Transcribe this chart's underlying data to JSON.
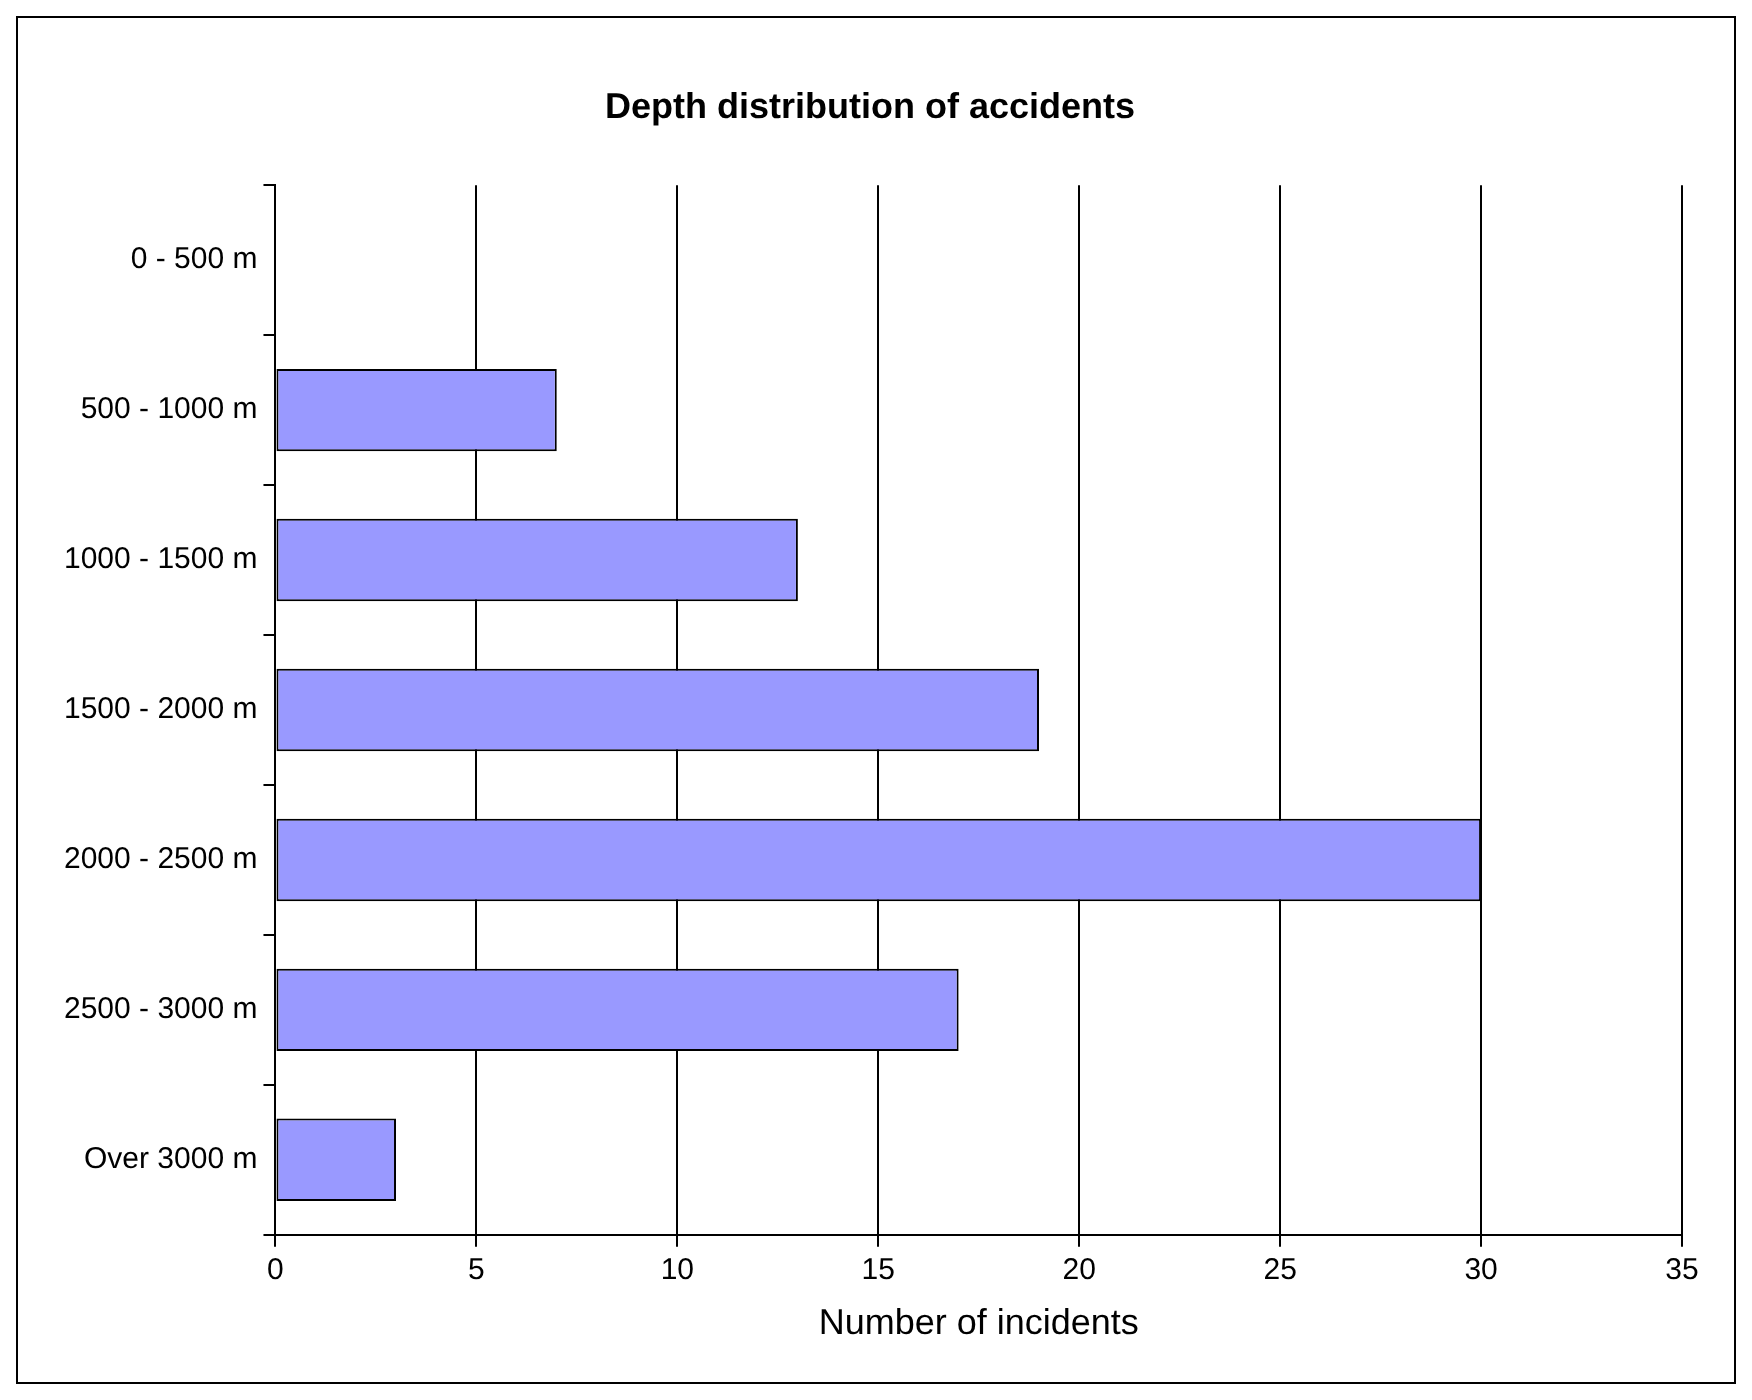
{
  "chart_data": {
    "type": "bar",
    "orientation": "horizontal",
    "title": "Depth distribution of accidents",
    "xlabel": "Number of incidents",
    "categories": [
      "0 - 500 m",
      "500 - 1000 m",
      "1000 - 1500 m",
      "1500 - 2000 m",
      "2000 - 2500 m",
      "2500 - 3000 m",
      "Over 3000 m"
    ],
    "values": [
      0,
      7,
      13,
      19,
      30,
      17,
      3
    ],
    "color": "#9999ff",
    "xlim": [
      0,
      35
    ],
    "xticks": [
      0,
      5,
      10,
      15,
      20,
      25,
      30,
      35
    ],
    "grid": "x"
  }
}
